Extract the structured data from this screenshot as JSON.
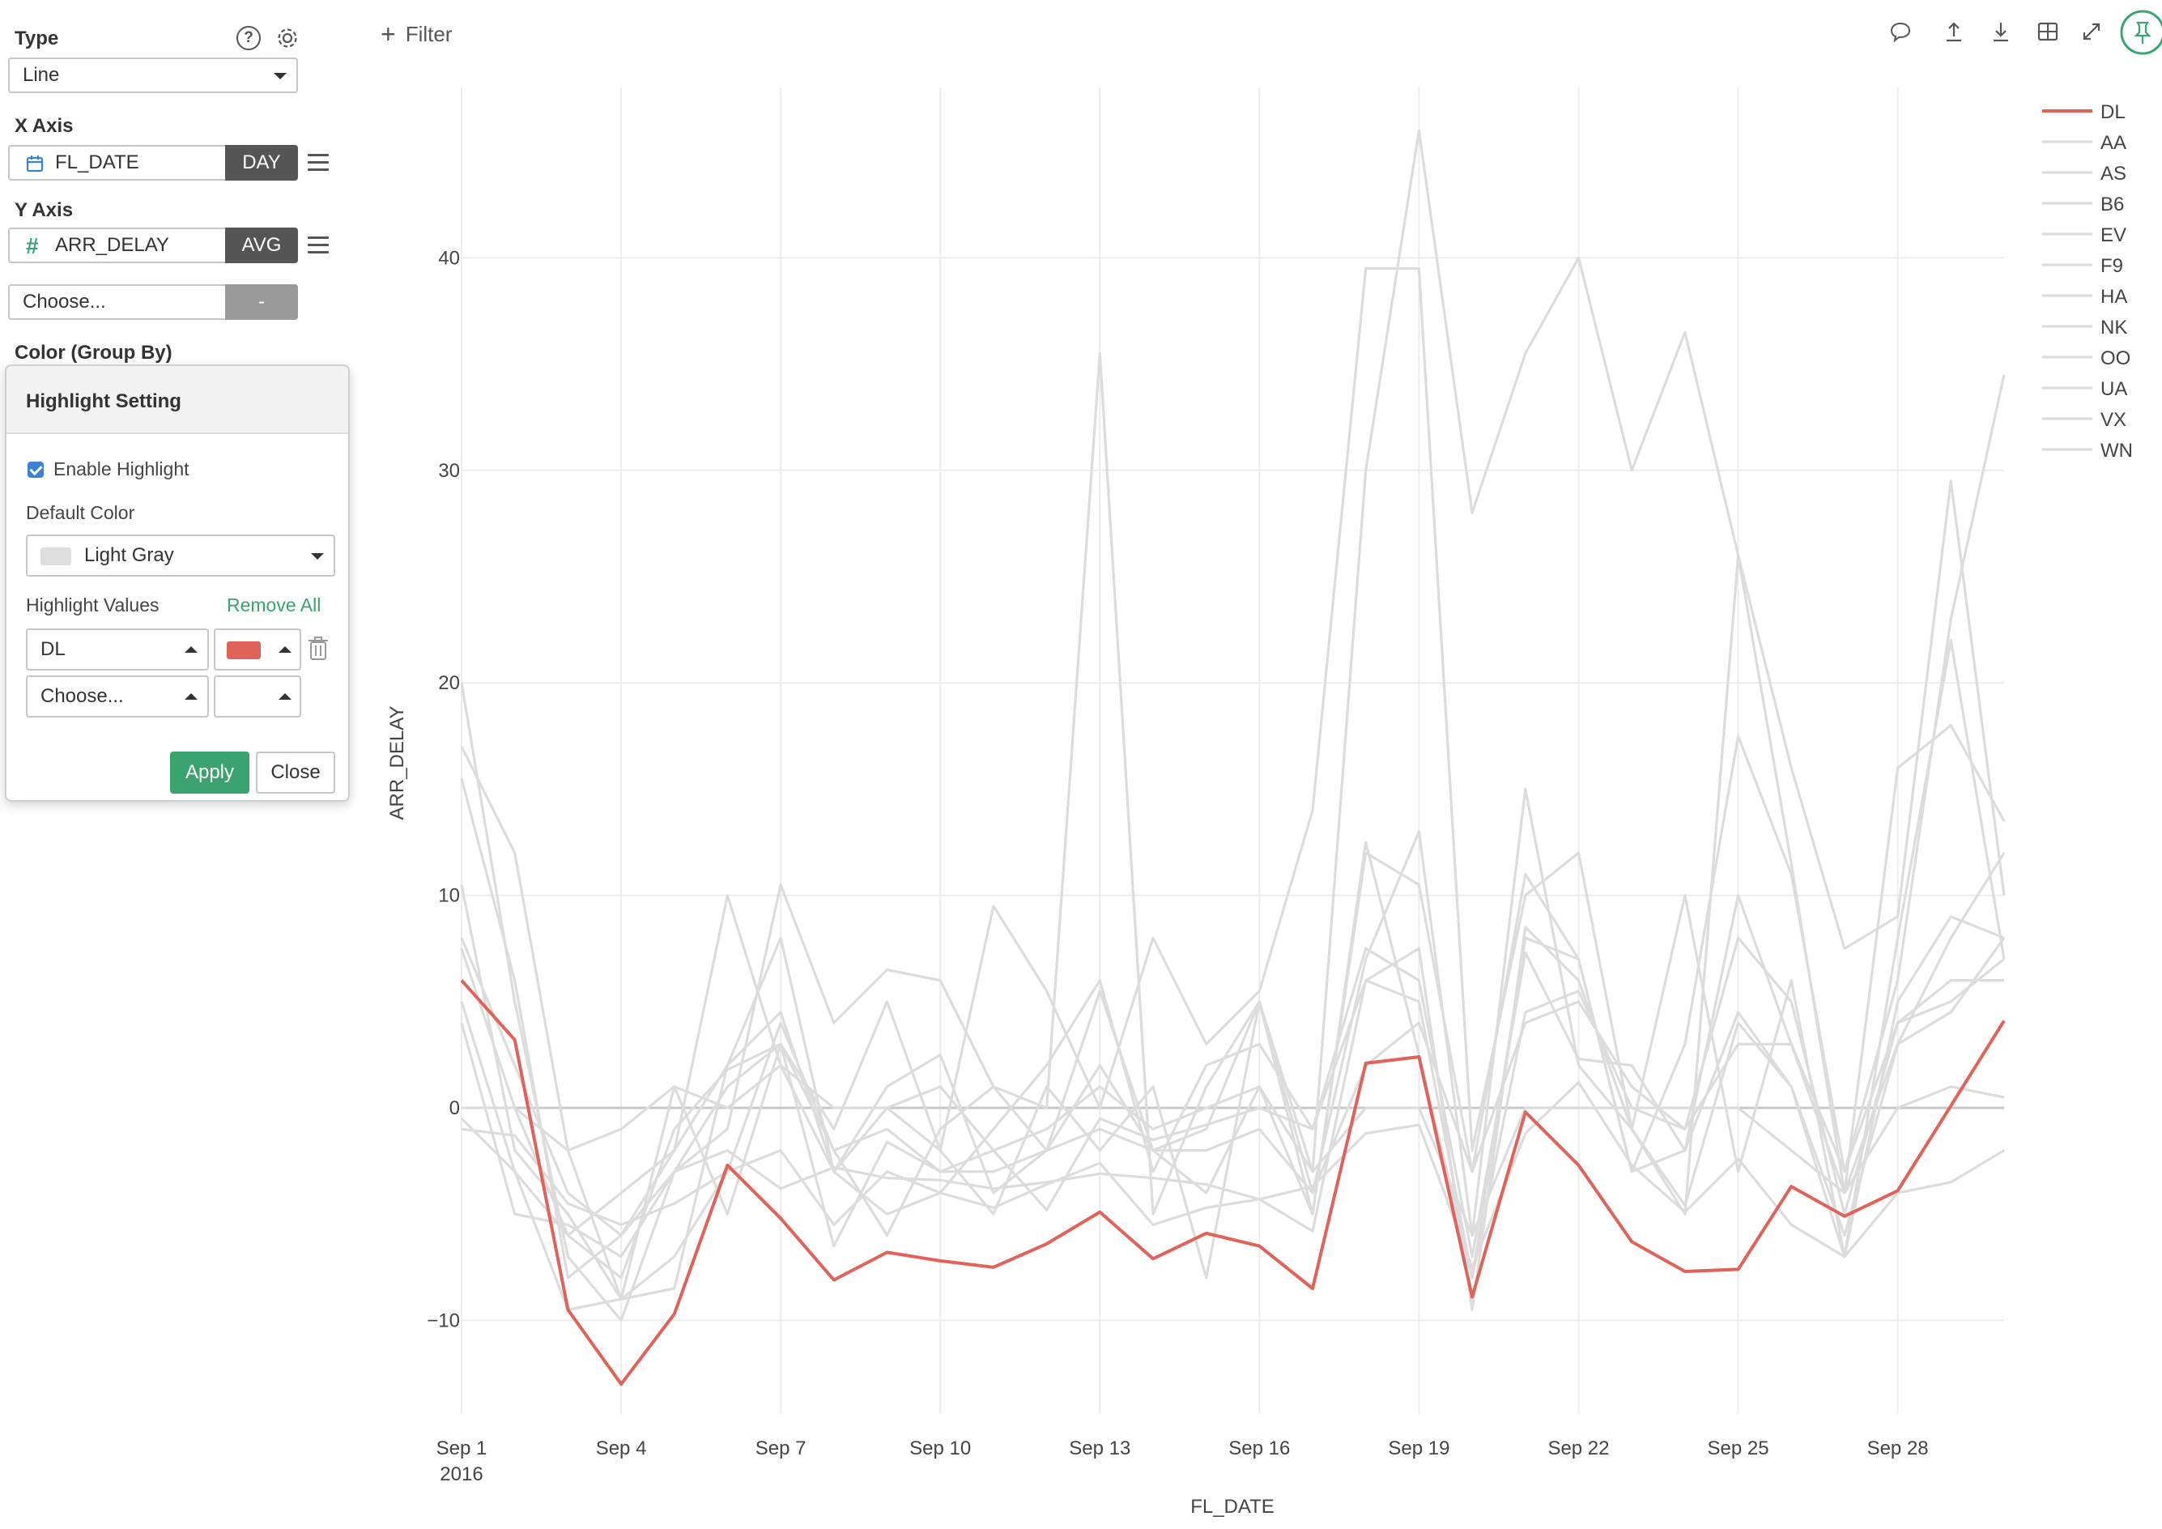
{
  "sidebar": {
    "type_label": "Type",
    "type_value": "Line",
    "x_axis_label": "X Axis",
    "x_field": "FL_DATE",
    "x_agg": "DAY",
    "y_axis_label": "Y Axis",
    "y_field": "ARR_DELAY",
    "y_agg": "AVG",
    "y2_placeholder": "Choose...",
    "y2_agg": "-",
    "color_label": "Color (Group By)"
  },
  "highlight": {
    "title": "Highlight Setting",
    "enable_label": "Enable Highlight",
    "enabled": true,
    "default_color_label": "Default Color",
    "default_color_value": "Light Gray",
    "default_color_hex": "#dddddd",
    "values_label": "Highlight Values",
    "remove_all": "Remove All",
    "rows": [
      {
        "value": "DL",
        "color": "#e06259"
      },
      {
        "value": "Choose...",
        "color": ""
      }
    ],
    "apply": "Apply",
    "close": "Close"
  },
  "toolbar": {
    "filter_label": "Filter",
    "icons": [
      "comment-icon",
      "upload-icon",
      "download-icon",
      "table-icon",
      "expand-icon",
      "pin-icon"
    ]
  },
  "colors": {
    "highlight": "#e06259",
    "default": "#dcdcdc",
    "accent": "#3aa36f"
  },
  "chart_data": {
    "type": "line",
    "xlabel": "FL_DATE",
    "ylabel": "ARR_DELAY",
    "xlim": [
      "2016-09-01",
      "2016-09-30"
    ],
    "ylim": [
      -12.5,
      48
    ],
    "x_ticks": [
      "Sep 1",
      "Sep 4",
      "Sep 7",
      "Sep 10",
      "Sep 13",
      "Sep 16",
      "Sep 19",
      "Sep 22",
      "Sep 25",
      "Sep 28"
    ],
    "x_tick_sub": "2016",
    "y_ticks": [
      -10,
      0,
      10,
      20,
      30,
      40
    ],
    "grid": true,
    "legend_position": "right",
    "x": [
      "2016-09-01",
      "2016-09-02",
      "2016-09-03",
      "2016-09-04",
      "2016-09-05",
      "2016-09-06",
      "2016-09-07",
      "2016-09-08",
      "2016-09-09",
      "2016-09-10",
      "2016-09-11",
      "2016-09-12",
      "2016-09-13",
      "2016-09-14",
      "2016-09-15",
      "2016-09-16",
      "2016-09-17",
      "2016-09-18",
      "2016-09-19",
      "2016-09-20",
      "2016-09-21",
      "2016-09-22",
      "2016-09-23",
      "2016-09-24",
      "2016-09-25",
      "2016-09-26",
      "2016-09-27",
      "2016-09-28",
      "2016-09-29",
      "2016-09-30"
    ],
    "series": [
      {
        "name": "DL",
        "highlight": true,
        "values": [
          6,
          3.2,
          -9.5,
          -13,
          -9.7,
          -2.7,
          -5.2,
          -8.1,
          -6.8,
          -7.2,
          -7.5,
          -6.4,
          -4.9,
          -7.1,
          -5.9,
          -6.5,
          -8.5,
          2.1,
          2.4,
          -8.9,
          -0.2,
          -2.7,
          -6.3,
          -7.7,
          -7.6,
          -3.7,
          -5.1,
          -3.9,
          0.1,
          4.1
        ]
      },
      {
        "name": "AA",
        "highlight": false,
        "values": [
          17,
          12,
          -2,
          -9,
          -7,
          -3,
          4,
          -2,
          -6,
          -1,
          1,
          -2,
          2,
          -2,
          -1,
          5,
          -5,
          12,
          10.5,
          -3,
          11,
          7,
          -3,
          -2,
          10,
          3,
          -4,
          3,
          8,
          12
        ]
      },
      {
        "name": "AS",
        "highlight": false,
        "values": [
          5,
          -3,
          -6,
          -4,
          -2,
          10,
          2,
          -3,
          0,
          -2,
          -5,
          1,
          -2,
          1,
          -8,
          5,
          -4,
          7,
          13,
          -6,
          15,
          2,
          -1,
          10,
          -3,
          6,
          -7,
          8,
          22,
          7
        ]
      },
      {
        "name": "B6",
        "highlight": false,
        "values": [
          20,
          5,
          -7,
          -10,
          -3,
          -1,
          10.5,
          4,
          6.5,
          6,
          1,
          0,
          35.5,
          -5,
          1,
          5,
          -3,
          30,
          46,
          28,
          35.5,
          40,
          30,
          36.5,
          26,
          16,
          7.5,
          9,
          29.5,
          10
        ]
      },
      {
        "name": "EV",
        "highlight": false,
        "values": [
          15.5,
          6,
          -8,
          -6,
          -2,
          2,
          8,
          -3,
          -5,
          -4,
          -1,
          2,
          6,
          -3,
          2,
          3,
          -1,
          6,
          5,
          -8,
          8,
          7,
          -3,
          3,
          17.5,
          11,
          -3,
          6,
          23,
          34.5
        ]
      },
      {
        "name": "F9",
        "highlight": false,
        "values": [
          10.5,
          -2,
          -5,
          -9,
          1,
          -5,
          3,
          -1,
          5,
          -2,
          9.5,
          5.5,
          0,
          8,
          3,
          5.5,
          14,
          39.5,
          39.5,
          -2,
          10,
          12,
          -1,
          -5,
          26,
          11.5,
          -4,
          16,
          18,
          13.5
        ]
      },
      {
        "name": "HA",
        "highlight": false,
        "values": [
          4,
          -5,
          -5.5,
          -7,
          -3,
          -2,
          -3.8,
          -2.8,
          -3.3,
          -3.4,
          -3.8,
          -3.5,
          -3.1,
          -3.3,
          -3.6,
          -4.3,
          -3.7,
          -1.2,
          -0.8,
          -7.5,
          -1.2,
          1.2,
          -2.7,
          -4.9,
          -2.4,
          -5.5,
          -7,
          -4,
          -3.5,
          -2
        ]
      },
      {
        "name": "NK",
        "highlight": false,
        "values": [
          0,
          0,
          -2,
          -1,
          1,
          0,
          2,
          0,
          0,
          1,
          -2,
          -1,
          1,
          -1,
          0,
          1,
          -3,
          0,
          0,
          -6,
          0,
          0,
          0,
          0,
          0,
          -2,
          -4,
          0,
          1,
          0.5
        ]
      },
      {
        "name": "OO",
        "highlight": false,
        "values": [
          -1,
          -1.3,
          -4.5,
          -5.5,
          -4.5,
          -3,
          -2,
          -5.5,
          -3,
          -4,
          -4.7,
          -3.6,
          -2.6,
          -5.5,
          -4.7,
          -4.3,
          -5.8,
          6,
          7.5,
          -9.5,
          8.5,
          6,
          -1,
          -4.6,
          4,
          1,
          -6,
          3,
          4.5,
          8
        ]
      },
      {
        "name": "UA",
        "highlight": false,
        "values": [
          8,
          2,
          -4,
          -6,
          -3,
          1,
          3,
          -2,
          -1,
          -3,
          -3,
          -2,
          -1,
          -2,
          -2,
          -1,
          -4,
          2,
          4,
          -3,
          4,
          5,
          1,
          -1,
          3,
          3,
          -3,
          4,
          6,
          6
        ]
      },
      {
        "name": "VX",
        "highlight": false,
        "values": [
          -0.5,
          -3,
          -9.5,
          -9,
          -8.5,
          2,
          4.5,
          -3,
          1,
          2.5,
          -4,
          -2,
          5.5,
          -2,
          -4,
          1,
          -5,
          12.5,
          2.5,
          -8,
          4.5,
          5.5,
          0,
          -1,
          8,
          5,
          -5,
          4,
          5,
          7
        ]
      },
      {
        "name": "WN",
        "highlight": false,
        "values": [
          7.5,
          0,
          -6,
          -8,
          -1,
          1.8,
          3,
          -6.5,
          -1.6,
          -3,
          -2,
          -4.8,
          -0.5,
          -1.5,
          -0.8,
          0,
          -1,
          7.5,
          6,
          -7,
          7.3,
          2.3,
          2,
          -2,
          4.5,
          1,
          -7,
          5,
          9,
          8
        ]
      }
    ]
  }
}
